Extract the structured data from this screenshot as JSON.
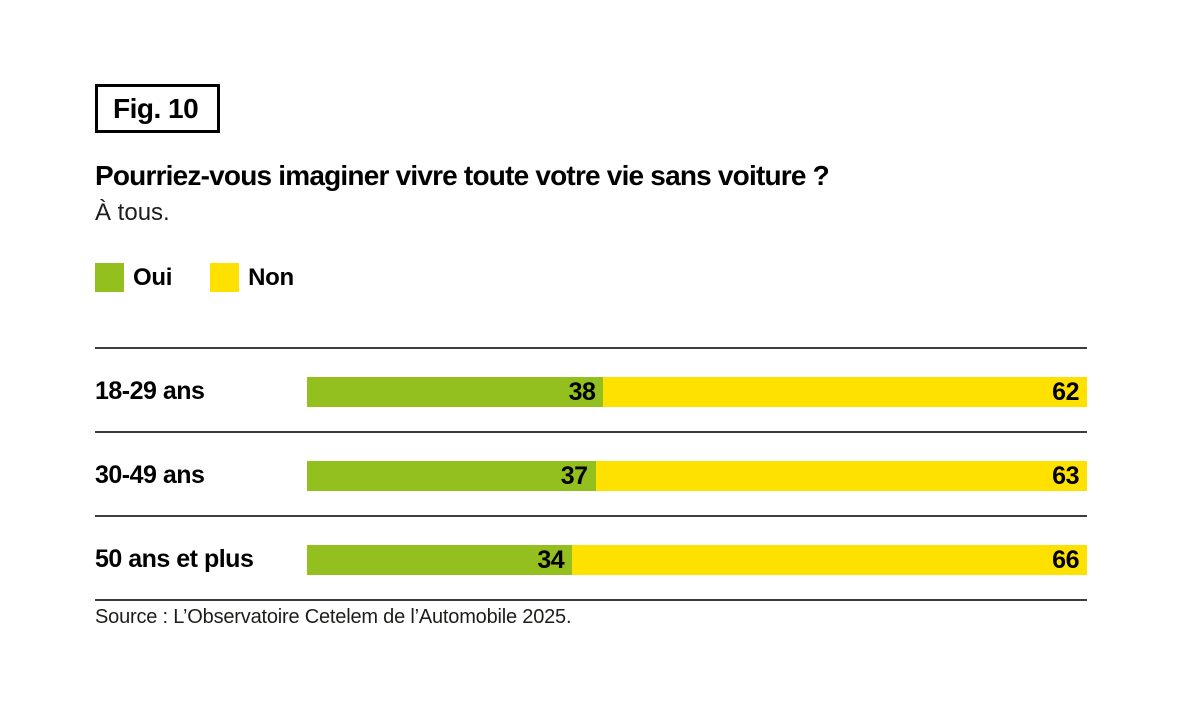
{
  "figure": {
    "label": "Fig. 10"
  },
  "title": "Pourriez-vous imaginer vivre toute votre vie sans voiture ?",
  "subtitle": "À tous.",
  "legend": [
    {
      "label": "Oui",
      "color": "#93c01f"
    },
    {
      "label": "Non",
      "color": "#ffe100"
    }
  ],
  "chart_data": {
    "type": "bar",
    "orientation": "horizontal-stacked",
    "title": "Pourriez-vous imaginer vivre toute votre vie sans voiture ?",
    "subtitle": "À tous.",
    "categories": [
      "18-29 ans",
      "30-49 ans",
      "50 ans et plus"
    ],
    "series": [
      {
        "name": "Oui",
        "color": "#93c01f",
        "values": [
          38,
          37,
          34
        ]
      },
      {
        "name": "Non",
        "color": "#ffe100",
        "values": [
          62,
          63,
          66
        ]
      }
    ],
    "xlim": [
      0,
      100
    ],
    "value_unit": "%",
    "grid": "horizontal-rules-between-rows",
    "legend_position": "top-left",
    "data_labels": "inside-right-of-segment"
  },
  "source": "Source : L’Observatoire Cetelem de l’Automobile 2025."
}
